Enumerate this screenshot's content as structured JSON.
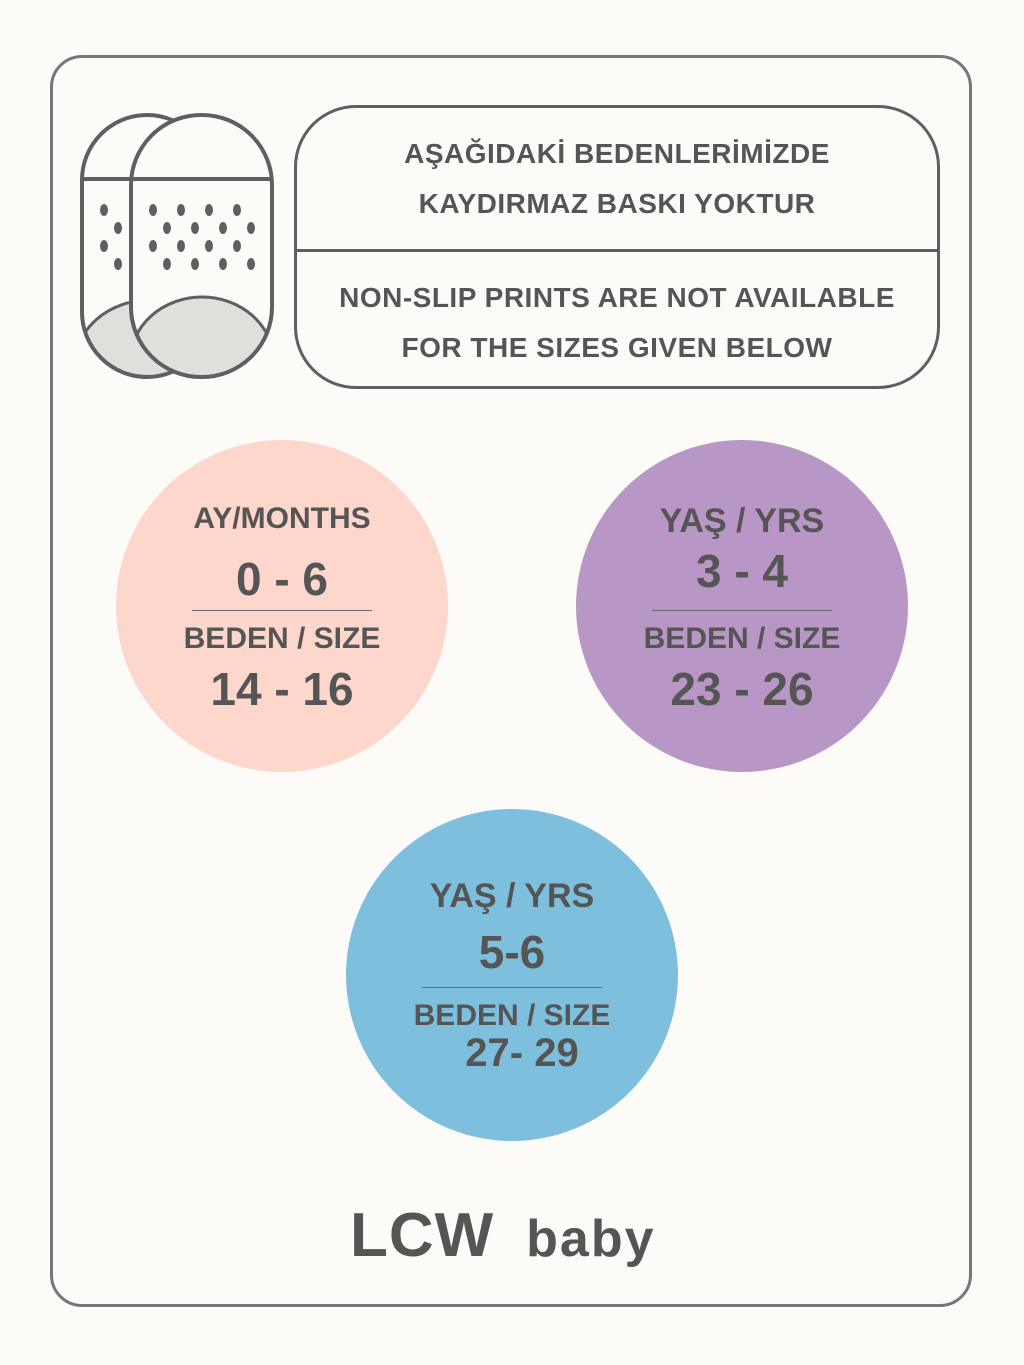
{
  "notice": {
    "turkish": [
      "AŞAĞIDAKİ BEDENLERİMİZDE",
      "KAYDIRMAZ BASKI YOKTUR"
    ],
    "english": [
      "NON-SLIP PRINTS ARE NOT AVAILABLE",
      "FOR THE SIZES GIVEN BELOW"
    ],
    "icon": "non-slip-socks-icon"
  },
  "sizes": [
    {
      "age_label": "AY/MONTHS",
      "age": "0 - 6",
      "size_label": "BEDEN / SIZE",
      "size": "14 - 16",
      "color": "#fdd6cc"
    },
    {
      "age_label": "YAŞ / YRS",
      "age": "3 - 4",
      "size_label": "BEDEN / SIZE",
      "size": "23 - 26",
      "color": "#b896c5"
    },
    {
      "age_label": "YAŞ / YRS",
      "age": "5-6",
      "size_label": "BEDEN / SIZE",
      "size": "27- 29",
      "color": "#7dbfdc"
    }
  ],
  "brand": {
    "name": "LCW",
    "line": "baby"
  }
}
